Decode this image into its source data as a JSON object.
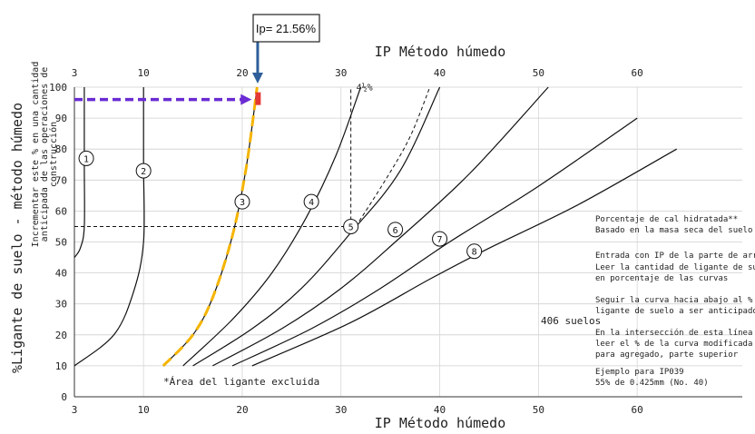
{
  "chart_data": {
    "type": "line",
    "title": "",
    "x_top_label": "IP Método húmedo",
    "x_bottom_label": "IP Método húmedo",
    "y_label": "%Ligante de suelo  - método húmedo",
    "y_label_sub": "Incrementar este % en una cantidad anticipada de las operaciones de construcción",
    "xlim": [
      3,
      68
    ],
    "ylim": [
      0,
      100
    ],
    "x_ticks_top": [
      3,
      10,
      20,
      30,
      40,
      50,
      60
    ],
    "x_ticks_bottom": [
      3,
      10,
      20,
      30,
      40,
      50,
      60
    ],
    "y_ticks": [
      0,
      10,
      20,
      30,
      40,
      50,
      60,
      70,
      80,
      90,
      100
    ],
    "grid": true,
    "series": [
      {
        "name": "1",
        "x": [
          3,
          3.6,
          4,
          4,
          4
        ],
        "y": [
          45,
          48,
          55,
          75,
          100
        ]
      },
      {
        "name": "2",
        "x": [
          3,
          7,
          9,
          10,
          10,
          10
        ],
        "y": [
          10,
          20,
          34,
          50,
          75,
          100
        ]
      },
      {
        "name": "3",
        "x": [
          12,
          15,
          17,
          19,
          20.4,
          21.5
        ],
        "y": [
          10,
          20,
          32,
          52,
          74,
          100
        ]
      },
      {
        "name": "4",
        "x": [
          14,
          19,
          23,
          26.5,
          29.5,
          32
        ],
        "y": [
          10,
          25,
          40,
          58,
          78,
          100
        ]
      },
      {
        "name": "5",
        "x": [
          15,
          21,
          26,
          31,
          36,
          40
        ],
        "y": [
          10,
          22,
          35,
          53,
          73,
          100
        ]
      },
      {
        "name": "6",
        "x": [
          17,
          24,
          30,
          35.5,
          43,
          51
        ],
        "y": [
          10,
          22,
          35,
          50,
          72,
          100
        ]
      },
      {
        "name": "7",
        "x": [
          19,
          27,
          34,
          41,
          50,
          60
        ],
        "y": [
          10,
          22,
          35,
          50,
          68,
          90
        ]
      },
      {
        "name": "8",
        "x": [
          21,
          31,
          39,
          45,
          54,
          64
        ],
        "y": [
          10,
          24,
          38,
          48,
          62,
          80
        ]
      }
    ],
    "curve_labels": [
      {
        "text": "1",
        "x": 4.2,
        "y": 77
      },
      {
        "text": "2",
        "x": 10.0,
        "y": 73
      },
      {
        "text": "3",
        "x": 20.0,
        "y": 63
      },
      {
        "text": "4",
        "x": 27.0,
        "y": 63
      },
      {
        "text": "5",
        "x": 31.0,
        "y": 55
      },
      {
        "text": "6",
        "x": 35.5,
        "y": 54
      },
      {
        "text": "7",
        "x": 40.0,
        "y": 51
      },
      {
        "text": "8",
        "x": 43.5,
        "y": 47
      }
    ],
    "modified_curve_5": {
      "x": [
        31.5,
        34.5,
        37,
        39
      ],
      "y": [
        55,
        70,
        84,
        100
      ]
    },
    "dashed_guides": {
      "horizontal_y": 55,
      "horizontal_from_x": 3,
      "horizontal_to_x": 31,
      "vertical_x": 31,
      "vertical_from_y": 55,
      "vertical_to_y": 100,
      "percent_label": "4½%"
    },
    "highlight_curve": {
      "x": [
        12,
        15,
        17,
        19,
        20.4,
        21.5
      ],
      "y": [
        10,
        20,
        32,
        52,
        74,
        100
      ],
      "color": "#f5b400"
    },
    "arrow_horizontal": {
      "y": 96,
      "from_x": 3,
      "to_x": 21.5,
      "color": "#6a2bd3"
    },
    "arrow_vertical": {
      "x": 21.56,
      "color": "#2e5f9a"
    },
    "callout": {
      "label": "Ip= 21.56%",
      "x": 21.56
    },
    "red_marker": {
      "x": 21.6,
      "y": 96,
      "color": "#e53935"
    },
    "notes": [
      "Porcentaje de cal hidratada**",
      "Basado en la masa seca del suelo",
      "Entrada con IP de la parte de arriba",
      "Leer la cantidad de ligante de suelo",
      "en porcentaje de las curvas",
      "Seguir la curva hacia abajo al % de",
      "ligante de suelo a ser anticipado",
      "En la intersección de esta línea",
      "leer el % de la curva modificada",
      "para agregado, parte superior",
      "Ejemplo para IP039",
      "55% de 0.425mm (No. 40)"
    ],
    "soil_count_label": "406 suelos",
    "excluded_area_label": "*Área del ligante excluida"
  }
}
